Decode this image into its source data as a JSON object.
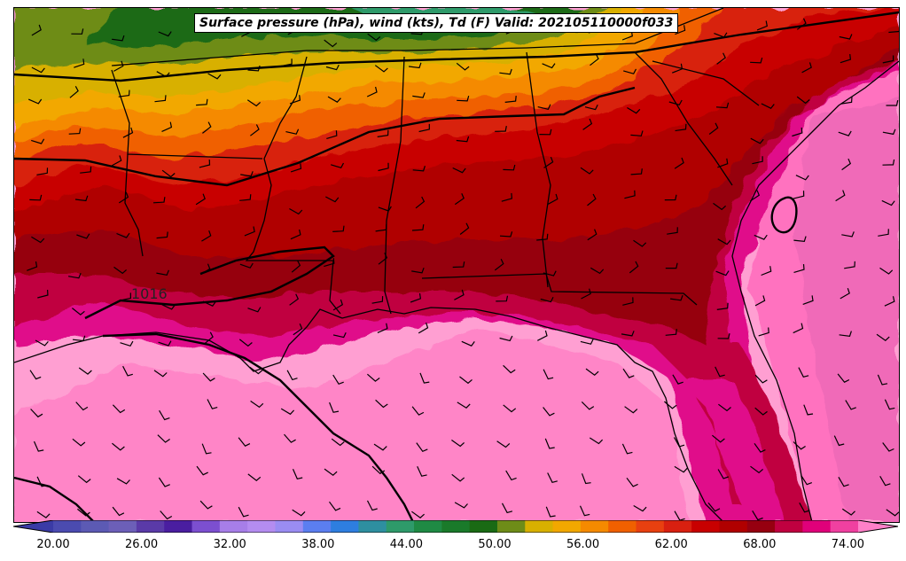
{
  "title": "Surface pressure (hPa), wind (kts), Td (F) Valid: 202105110000f033",
  "isobar_label": "1016",
  "colorbar": {
    "colors": [
      "#3b3ba6",
      "#4b4bb0",
      "#5c5ab4",
      "#6c5fb8",
      "#5a3aa8",
      "#4a1ea0",
      "#7c4fd0",
      "#a77ee8",
      "#b48cf0",
      "#9a8cf2",
      "#5b7ef0",
      "#2e7ee0",
      "#2e8fa0",
      "#2e9a6a",
      "#1f8a44",
      "#1a7a2a",
      "#1a6a14",
      "#6e8c18",
      "#d8b000",
      "#f2a800",
      "#f58a00",
      "#f06000",
      "#e84010",
      "#d82010",
      "#c80000",
      "#b00000",
      "#960010",
      "#c00040",
      "#e0007a",
      "#f040a0",
      "#ff80c8"
    ],
    "tick_labels": [
      "20.00",
      "26.00",
      "32.00",
      "38.00",
      "44.00",
      "50.00",
      "56.00",
      "62.00",
      "68.00",
      "74.00"
    ]
  }
}
